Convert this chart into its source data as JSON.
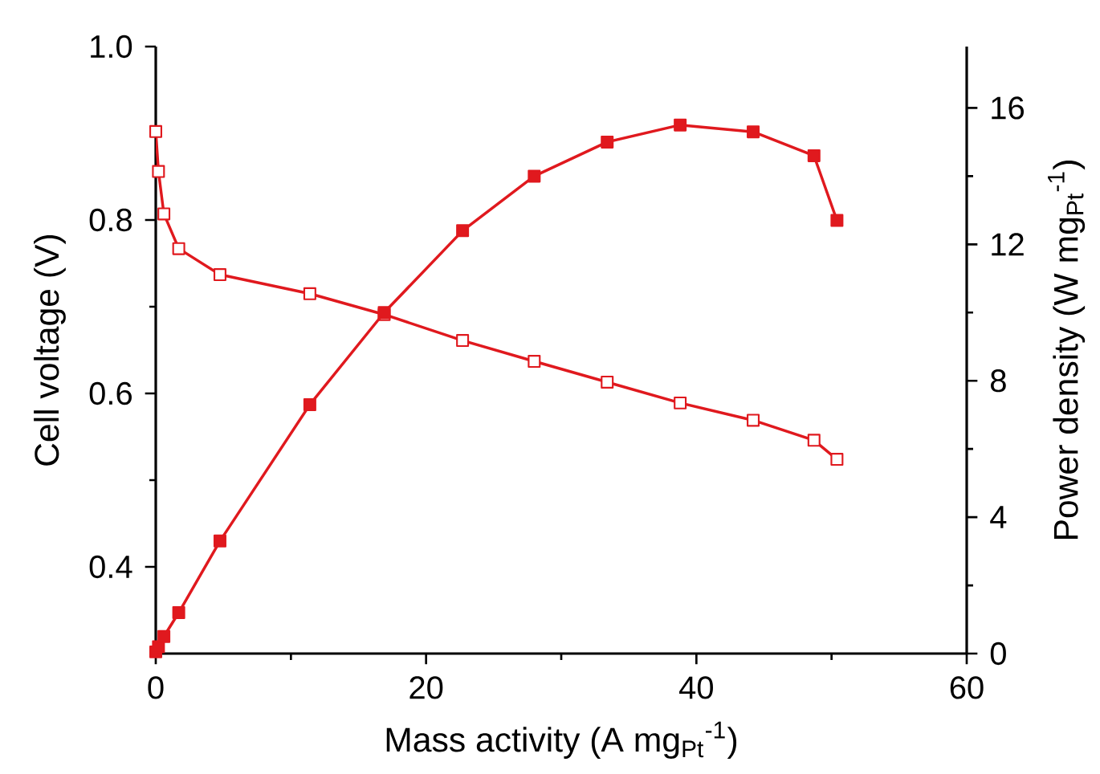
{
  "chart_data": {
    "type": "line",
    "xlabel": "Mass activity (A mg$_{Pt}$$^{-1}$)",
    "ylabel": "Cell voltage (V)",
    "y2label": "Power density (W mg$_{Pt}$$^{-1}$)",
    "xlim": [
      0,
      60
    ],
    "xticks": [
      0,
      20,
      40,
      60
    ],
    "ylim": [
      0.3,
      1.0
    ],
    "yticks": [
      0.4,
      0.6,
      0.8,
      {
        "value": 1.0,
        "label": "1.0"
      }
    ],
    "y2lim": [
      0,
      17.8
    ],
    "y2ticks": [
      0,
      4,
      8,
      12,
      16
    ],
    "marker": "square",
    "line_style": "solid",
    "x": [
      0,
      0.2,
      0.6,
      1.7,
      4.75,
      11.4,
      16.9,
      22.7,
      28.0,
      33.4,
      38.8,
      44.2,
      48.7,
      50.4
    ],
    "series": [
      {
        "color": "#e0191e",
        "axis": "y",
        "values": [
          0.902,
          0.856,
          0.807,
          0.767,
          0.737,
          0.715,
          0.691,
          0.661,
          0.637,
          0.613,
          0.589,
          0.569,
          0.546,
          0.524
        ]
      },
      {
        "color": "#e0191e",
        "axis": "y2",
        "values": [
          0.05,
          0.2,
          0.5,
          1.2,
          3.3,
          7.3,
          10.0,
          12.4,
          14.0,
          15.0,
          15.5,
          15.3,
          14.6,
          12.7
        ]
      }
    ]
  }
}
